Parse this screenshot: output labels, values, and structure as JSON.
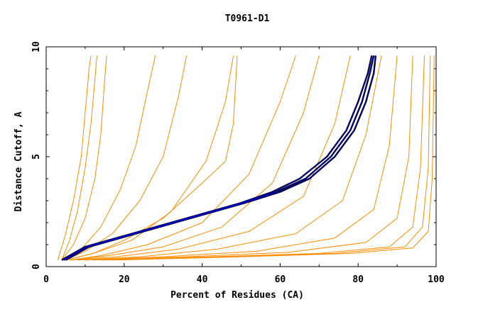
{
  "chart_data": {
    "type": "line",
    "title": "T0961-D1",
    "xlabel": "Percent of Residues (CA)",
    "ylabel": "Distance Cutoff, A",
    "xlim": [
      0,
      100
    ],
    "ylim": [
      0,
      10
    ],
    "xticks": [
      "0",
      "20",
      "40",
      "60",
      "80",
      "100"
    ],
    "yticks": [
      "0",
      "5",
      "10"
    ],
    "grid": false,
    "colors": {
      "background_series": "#ff8c00",
      "highlight_outer": "#000000",
      "highlight_inner": "#0000cd"
    },
    "series": [
      {
        "group": "orange",
        "x": [
          3,
          5,
          7,
          9,
          10,
          11,
          11.5
        ],
        "y": [
          0.3,
          1.5,
          3,
          5,
          7,
          9,
          9.6
        ]
      },
      {
        "group": "orange",
        "x": [
          4,
          6,
          8,
          10,
          11.5,
          12.5,
          13
        ],
        "y": [
          0.3,
          1.2,
          2.5,
          4.5,
          6.5,
          8.5,
          9.6
        ]
      },
      {
        "group": "orange",
        "x": [
          4,
          7,
          10,
          12.5,
          14,
          15,
          15.5
        ],
        "y": [
          0.3,
          1,
          2.2,
          4,
          6,
          8.5,
          9.6
        ]
      },
      {
        "group": "orange",
        "x": [
          5,
          9,
          14,
          19,
          23,
          26,
          28
        ],
        "y": [
          0.3,
          0.8,
          1.8,
          3.5,
          5.5,
          8,
          9.6
        ]
      },
      {
        "group": "orange",
        "x": [
          5,
          10,
          17,
          24,
          30,
          34,
          36
        ],
        "y": [
          0.3,
          0.7,
          1.5,
          3,
          5,
          7.8,
          9.6
        ]
      },
      {
        "group": "orange",
        "x": [
          5,
          12,
          22,
          32,
          41,
          46,
          48
        ],
        "y": [
          0.3,
          0.6,
          1.2,
          2.5,
          4.8,
          7.5,
          9.6
        ]
      },
      {
        "group": "orange",
        "x": [
          5,
          12,
          20,
          30,
          40,
          46,
          48,
          49
        ],
        "y": [
          0.3,
          0.6,
          1.2,
          2.2,
          3.8,
          4.8,
          6.5,
          9.6
        ]
      },
      {
        "group": "orange",
        "x": [
          6,
          14,
          26,
          40,
          52,
          60,
          64
        ],
        "y": [
          0.3,
          0.5,
          1,
          2,
          4.2,
          7.5,
          9.6
        ]
      },
      {
        "group": "orange",
        "x": [
          6,
          16,
          30,
          45,
          58,
          66,
          70
        ],
        "y": [
          0.3,
          0.5,
          0.9,
          1.8,
          3.8,
          7,
          9.6
        ]
      },
      {
        "group": "orange",
        "x": [
          6,
          18,
          34,
          52,
          66,
          74,
          78
        ],
        "y": [
          0.3,
          0.45,
          0.8,
          1.6,
          3.2,
          6.5,
          9.6
        ]
      },
      {
        "group": "orange",
        "x": [
          8,
          24,
          44,
          64,
          76,
          82,
          86
        ],
        "y": [
          0.3,
          0.45,
          0.8,
          1.5,
          3,
          6,
          9.6
        ]
      },
      {
        "group": "orange",
        "x": [
          10,
          30,
          54,
          74,
          84,
          88,
          90
        ],
        "y": [
          0.3,
          0.45,
          0.7,
          1.3,
          2.6,
          5.5,
          9.6
        ]
      },
      {
        "group": "orange",
        "x": [
          12,
          36,
          62,
          82,
          90,
          93,
          94
        ],
        "y": [
          0.3,
          0.45,
          0.65,
          1.1,
          2.2,
          5,
          9.6
        ]
      },
      {
        "group": "orange",
        "x": [
          14,
          42,
          70,
          88,
          94,
          96,
          97
        ],
        "y": [
          0.3,
          0.45,
          0.6,
          0.9,
          1.8,
          4.5,
          9.6
        ]
      },
      {
        "group": "orange",
        "x": [
          16,
          46,
          74,
          92,
          96.5,
          98,
          98.5
        ],
        "y": [
          0.3,
          0.45,
          0.6,
          0.9,
          1.8,
          4.5,
          9.6
        ]
      },
      {
        "group": "orange",
        "x": [
          18,
          50,
          78,
          94,
          98,
          99,
          99.5
        ],
        "y": [
          0.3,
          0.45,
          0.6,
          0.85,
          1.6,
          4,
          9.6
        ]
      },
      {
        "group": "highlight",
        "x": [
          4,
          10,
          20,
          30,
          40,
          50,
          58,
          65,
          72,
          77,
          80,
          82.5,
          83.5
        ],
        "y": [
          0.3,
          0.9,
          1.4,
          1.9,
          2.4,
          2.9,
          3.4,
          4,
          5,
          6.2,
          7.5,
          8.8,
          9.6
        ]
      },
      {
        "group": "highlight",
        "x": [
          4.5,
          10.5,
          20.5,
          30.5,
          40.5,
          50.5,
          59,
          66.5,
          73,
          78,
          81,
          83,
          84
        ],
        "y": [
          0.3,
          0.9,
          1.4,
          1.9,
          2.4,
          2.9,
          3.4,
          4,
          5,
          6.2,
          7.5,
          8.8,
          9.6
        ]
      },
      {
        "group": "highlight",
        "x": [
          5,
          11,
          21,
          31,
          41,
          51,
          60,
          67.5,
          74,
          79,
          82,
          84,
          84.5
        ],
        "y": [
          0.3,
          0.9,
          1.4,
          1.9,
          2.4,
          2.9,
          3.4,
          4,
          5,
          6.2,
          7.5,
          8.8,
          9.6
        ]
      }
    ]
  }
}
